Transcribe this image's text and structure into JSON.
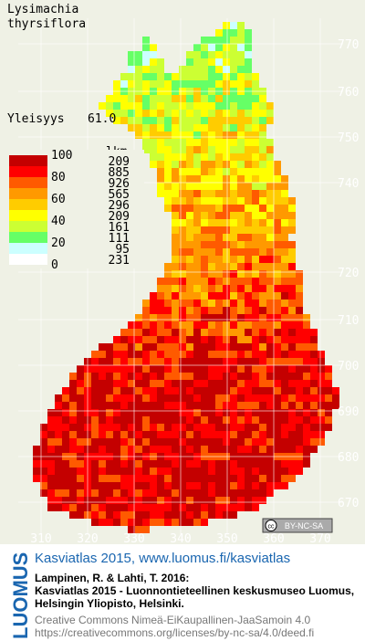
{
  "species": [
    "Lysimachia",
    "thyrsiflora"
  ],
  "frequency": {
    "label": "Yleisyys",
    "value": "61.0"
  },
  "legend": {
    "scale_labels": [
      "100",
      "80",
      "60",
      "40",
      "20",
      "0"
    ],
    "count_header": "lkm",
    "counts": [
      209,
      885,
      926,
      565,
      296,
      209,
      161,
      111,
      95,
      231
    ],
    "colors": [
      "#c40000",
      "#ff0000",
      "#ff5a00",
      "#ff9900",
      "#ffcc00",
      "#ffff00",
      "#ccff33",
      "#66ff66",
      "#ccffff",
      "#ffffff"
    ]
  },
  "grid": {
    "y_labels": [
      "770",
      "760",
      "750",
      "740",
      "720",
      "710",
      "700",
      "690",
      "680",
      "670"
    ],
    "x_labels": [
      "310",
      "320",
      "330",
      "340",
      "350",
      "360",
      "370"
    ]
  },
  "badge": "BY-NC-SA",
  "footer": {
    "logo": "LUOMUS",
    "link": "Kasviatlas 2015, www.luomus.fi/kasviatlas",
    "citation": [
      "Lampinen, R. & Lahti, T. 2016:",
      "Kasviatlas 2015 - Luonnontieteellinen keskusmuseo Luomus,",
      "Helsingin Yliopisto, Helsinki."
    ],
    "license": [
      "Creative Commons Nimeä-EiKaupallinen-JaaSamoin 4.0",
      "https://creativecommons.org/licenses/by-nc-sa/4.0/deed.fi"
    ]
  }
}
